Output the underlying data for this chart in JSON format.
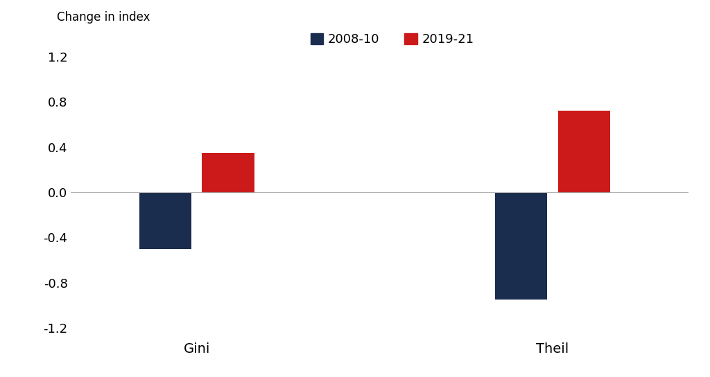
{
  "categories": [
    "Gini",
    "Theil"
  ],
  "series": {
    "2008-10": [
      -0.5,
      -0.95
    ],
    "2019-21": [
      0.35,
      0.72
    ]
  },
  "colors": {
    "2008-10": "#1b2d4e",
    "2019-21": "#cc1a1a"
  },
  "ylabel": "Change in index",
  "ylim": [
    -1.3,
    1.3
  ],
  "yticks": [
    -1.2,
    -0.8,
    -0.4,
    0.0,
    0.4,
    0.8,
    1.2
  ],
  "bar_width": 0.25,
  "legend_labels": [
    "2008-10",
    "2019-21"
  ],
  "background_color": "#ffffff",
  "xlabel_fontsize": 14,
  "ylabel_fontsize": 12,
  "tick_fontsize": 13,
  "legend_fontsize": 13,
  "group_centers": [
    0.5,
    2.2
  ]
}
